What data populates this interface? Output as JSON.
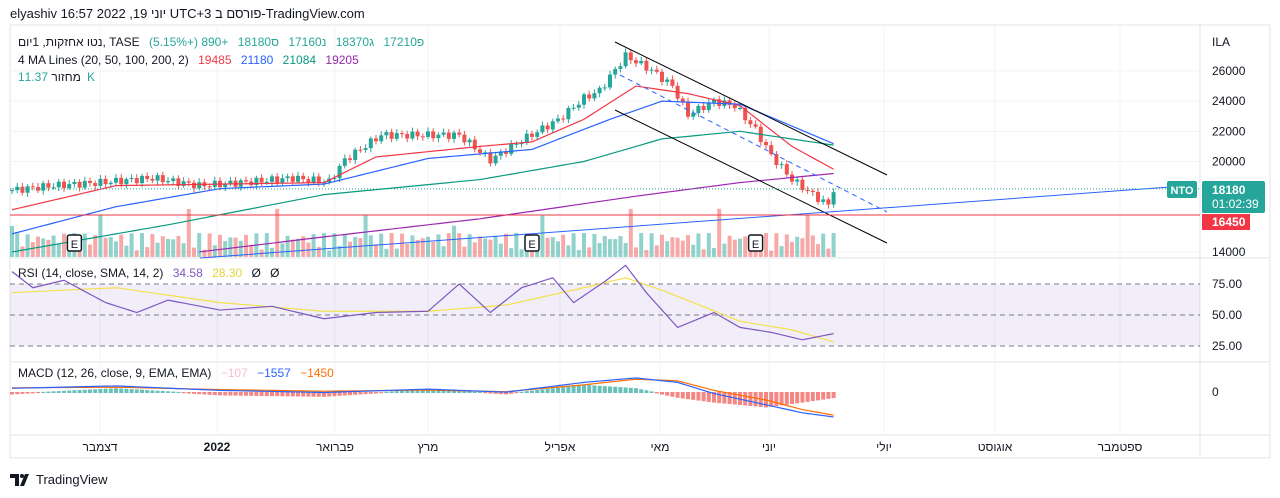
{
  "header": {
    "title": "elyashiv יוני 19, 2022 16:57 UTC+3 פורסם ב-TradingView.com"
  },
  "legend": {
    "symbol": "נטו אחזקות, 1יום, TASE",
    "open": "פ17210",
    "high": "ג18370",
    "low": "נ17160",
    "close": "ס18180",
    "change": "+890 (+5.15%)",
    "ma_label": "4 MA Lines (20, 50, 100, 200, 2)",
    "ma20": "19485",
    "ma50": "21180",
    "ma100": "21084",
    "ma200": "19205",
    "vol_label": "מחזור",
    "vol": "11.37K",
    "rsi_label": "RSI (14, close, SMA, 14, 2)",
    "rsi": "34.58",
    "rsi_ma": "28.30",
    "rsi_x1": "Ø",
    "rsi_x2": "Ø",
    "macd_label": "MACD (12, 26, close, 9, EMA, EMA)",
    "macd_hist": "−107",
    "macd": "−1557",
    "macd_signal": "−1450"
  },
  "price_axis": {
    "currency": "ILA",
    "ticks": [
      "26000",
      "24000",
      "22000",
      "20000",
      "14000"
    ],
    "last_price": "18180",
    "countdown": "01:02:39",
    "symbol_tag": "NTO",
    "line_price": "16450"
  },
  "rsi_axis": {
    "ticks": [
      "75.00",
      "50.00",
      "25.00"
    ]
  },
  "macd_axis": {
    "ticks": [
      "0"
    ]
  },
  "time_axis": [
    "דצמבר",
    "2022",
    "פברואר",
    "מרץ",
    "אפריל",
    "מאי",
    "יוני",
    "יולי",
    "אוגוסט",
    "ספטמבר"
  ],
  "earnings_marker": "E",
  "footer": {
    "brand": "TradingView"
  },
  "colors": {
    "up": "#26a69a",
    "down": "#ef5350",
    "ma20": "#f23645",
    "ma50": "#2962ff",
    "ma100": "#089981",
    "ma200": "#9c27b0",
    "rsi": "#7e57c2",
    "rsi_ma": "#f4e04d",
    "macd": "#2962ff",
    "signal": "#ff6d00"
  },
  "chart_data": {
    "type": "candlestick",
    "y_range": [
      14000,
      27300
    ],
    "close_path": [
      [
        0,
        18100
      ],
      [
        8,
        18400
      ],
      [
        17,
        18600
      ],
      [
        27,
        18900
      ],
      [
        36,
        18400
      ],
      [
        46,
        18650
      ],
      [
        54,
        18900
      ],
      [
        61,
        18650
      ],
      [
        64,
        20100
      ],
      [
        71,
        21750
      ],
      [
        79,
        21750
      ],
      [
        86,
        21750
      ],
      [
        92,
        20100
      ],
      [
        98,
        21400
      ],
      [
        105,
        22750
      ],
      [
        110,
        24200
      ],
      [
        113,
        24700
      ],
      [
        118,
        27000
      ],
      [
        123,
        26050
      ],
      [
        127,
        25000
      ],
      [
        130,
        23100
      ],
      [
        135,
        24000
      ],
      [
        139,
        23700
      ],
      [
        143,
        22100
      ],
      [
        146,
        20400
      ],
      [
        150,
        18800
      ],
      [
        154,
        17800
      ],
      [
        157,
        17100
      ],
      [
        158,
        18180
      ]
    ],
    "ma20": [
      [
        0,
        16800
      ],
      [
        20,
        18400
      ],
      [
        40,
        18500
      ],
      [
        60,
        18600
      ],
      [
        70,
        20300
      ],
      [
        90,
        21000
      ],
      [
        100,
        21300
      ],
      [
        110,
        22800
      ],
      [
        120,
        25000
      ],
      [
        130,
        24500
      ],
      [
        140,
        23700
      ],
      [
        150,
        21000
      ],
      [
        158,
        19485
      ]
    ],
    "ma50": [
      [
        0,
        15200
      ],
      [
        20,
        17000
      ],
      [
        40,
        18200
      ],
      [
        60,
        18500
      ],
      [
        80,
        20200
      ],
      [
        100,
        20800
      ],
      [
        115,
        22800
      ],
      [
        125,
        24000
      ],
      [
        140,
        23800
      ],
      [
        158,
        21180
      ]
    ],
    "ma100": [
      [
        0,
        14000
      ],
      [
        30,
        15800
      ],
      [
        60,
        17800
      ],
      [
        90,
        18800
      ],
      [
        110,
        20000
      ],
      [
        125,
        21500
      ],
      [
        140,
        22000
      ],
      [
        158,
        21084
      ]
    ],
    "ma200": [
      [
        36,
        14000
      ],
      [
        60,
        15000
      ],
      [
        90,
        16200
      ],
      [
        120,
        17700
      ],
      [
        140,
        18600
      ],
      [
        158,
        19205
      ]
    ],
    "horizontal_line": 16450,
    "rsi": [
      [
        0,
        85
      ],
      [
        4,
        72
      ],
      [
        10,
        78
      ],
      [
        18,
        60
      ],
      [
        24,
        52
      ],
      [
        30,
        62
      ],
      [
        40,
        54
      ],
      [
        50,
        57
      ],
      [
        60,
        47
      ],
      [
        70,
        52
      ],
      [
        80,
        53
      ],
      [
        86,
        75
      ],
      [
        92,
        52
      ],
      [
        98,
        72
      ],
      [
        104,
        80
      ],
      [
        108,
        60
      ],
      [
        114,
        77
      ],
      [
        118,
        90
      ],
      [
        122,
        68
      ],
      [
        128,
        40
      ],
      [
        135,
        52
      ],
      [
        140,
        40
      ],
      [
        146,
        36
      ],
      [
        152,
        30
      ],
      [
        158,
        35
      ]
    ],
    "rsi_ma": [
      [
        0,
        68
      ],
      [
        20,
        72
      ],
      [
        40,
        60
      ],
      [
        60,
        53
      ],
      [
        80,
        53
      ],
      [
        95,
        58
      ],
      [
        110,
        72
      ],
      [
        118,
        80
      ],
      [
        125,
        70
      ],
      [
        140,
        45
      ],
      [
        150,
        38
      ],
      [
        158,
        28.3
      ]
    ],
    "rsi_levels": [
      75,
      50,
      25
    ],
    "macd": [
      [
        0,
        230
      ],
      [
        20,
        380
      ],
      [
        40,
        100
      ],
      [
        60,
        -30
      ],
      [
        80,
        180
      ],
      [
        95,
        -10
      ],
      [
        110,
        600
      ],
      [
        120,
        880
      ],
      [
        128,
        600
      ],
      [
        135,
        -100
      ],
      [
        145,
        -800
      ],
      [
        152,
        -1300
      ],
      [
        158,
        -1557
      ]
    ],
    "signal": [
      [
        0,
        260
      ],
      [
        20,
        300
      ],
      [
        40,
        150
      ],
      [
        60,
        50
      ],
      [
        80,
        120
      ],
      [
        95,
        20
      ],
      [
        110,
        450
      ],
      [
        120,
        800
      ],
      [
        128,
        700
      ],
      [
        135,
        100
      ],
      [
        145,
        -500
      ],
      [
        152,
        -1100
      ],
      [
        158,
        -1450
      ]
    ],
    "earnings_bars": [
      12,
      100,
      143
    ],
    "x_labels": "Dec 2021 – Sep 2022"
  }
}
